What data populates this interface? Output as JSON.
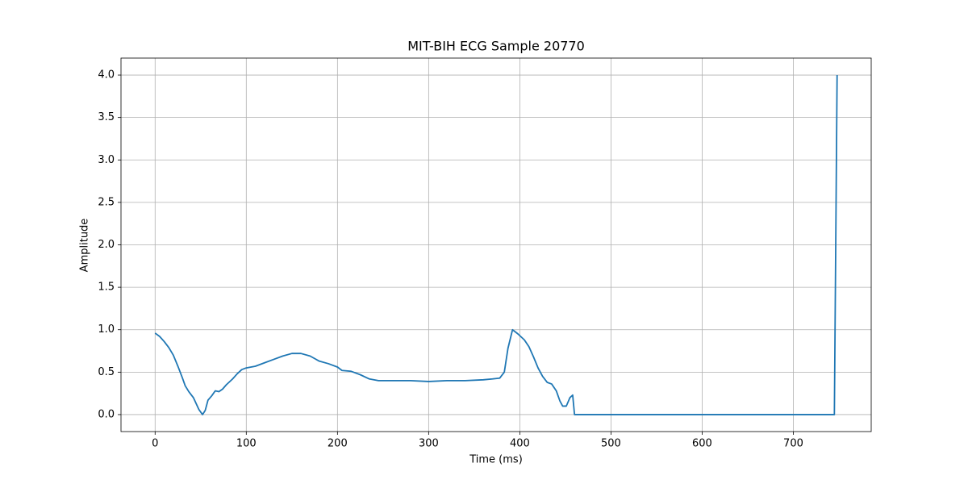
{
  "chart_data": {
    "type": "line",
    "title": "MIT-BIH ECG Sample 20770",
    "x_label": "Time (ms)",
    "y_label": "Amplitude",
    "x": [
      0,
      5,
      10,
      15,
      20,
      25,
      30,
      33,
      37,
      42,
      45,
      48,
      52,
      55,
      58,
      62,
      66,
      70,
      74,
      78,
      85,
      90,
      95,
      100,
      110,
      120,
      130,
      140,
      150,
      160,
      170,
      175,
      180,
      190,
      200,
      205,
      215,
      225,
      235,
      245,
      260,
      280,
      300,
      320,
      340,
      360,
      370,
      378,
      383,
      387,
      392,
      398,
      405,
      410,
      415,
      420,
      425,
      430,
      435,
      440,
      444,
      447,
      451,
      455,
      458,
      460,
      745,
      748
    ],
    "values": [
      0.96,
      0.92,
      0.86,
      0.79,
      0.7,
      0.57,
      0.43,
      0.34,
      0.27,
      0.2,
      0.13,
      0.06,
      0.0,
      0.05,
      0.17,
      0.22,
      0.28,
      0.27,
      0.3,
      0.35,
      0.42,
      0.48,
      0.53,
      0.55,
      0.57,
      0.61,
      0.65,
      0.69,
      0.72,
      0.72,
      0.69,
      0.66,
      0.63,
      0.6,
      0.56,
      0.52,
      0.51,
      0.47,
      0.42,
      0.4,
      0.4,
      0.4,
      0.39,
      0.4,
      0.4,
      0.41,
      0.42,
      0.43,
      0.5,
      0.78,
      1.0,
      0.95,
      0.88,
      0.8,
      0.68,
      0.55,
      0.45,
      0.38,
      0.36,
      0.28,
      0.16,
      0.1,
      0.1,
      0.2,
      0.23,
      0.0,
      0.0,
      4.0
    ],
    "color": "#1f77b4",
    "xlim": [
      -37.4,
      785.4
    ],
    "ylim": [
      -0.2,
      4.2
    ],
    "xticks": [
      0,
      100,
      200,
      300,
      400,
      500,
      600,
      700
    ],
    "yticks": [
      {
        "value": 0,
        "label": "0.0"
      },
      0.5,
      {
        "value": 1,
        "label": "1.0"
      },
      1.5,
      {
        "value": 2,
        "label": "2.0"
      },
      2.5,
      {
        "value": 3,
        "label": "3.0"
      },
      3.5,
      {
        "value": 4,
        "label": "4.0"
      }
    ],
    "grid": true
  }
}
